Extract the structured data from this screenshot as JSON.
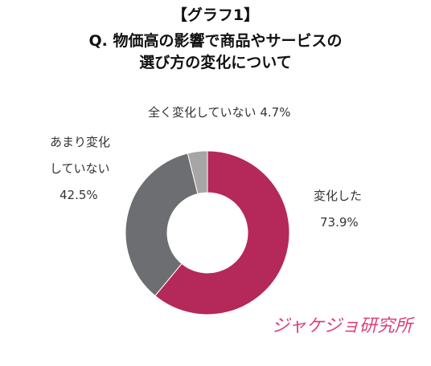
{
  "chart_data": {
    "type": "donut",
    "title": "【グラフ1】",
    "subtitle": [
      "Q. 物価高の影響で商品やサービスの",
      "選び方の変化について"
    ],
    "categories": [
      "変化した",
      "あまり変化していない",
      "全く変化していない"
    ],
    "values": [
      73.9,
      42.5,
      4.7
    ],
    "value_labels": [
      "73.9%",
      "42.5%",
      "4.7%"
    ],
    "colors": [
      "#b5285a",
      "#6d6e71",
      "#a6a6a6"
    ],
    "logo": "ジャケジョ研究所"
  }
}
